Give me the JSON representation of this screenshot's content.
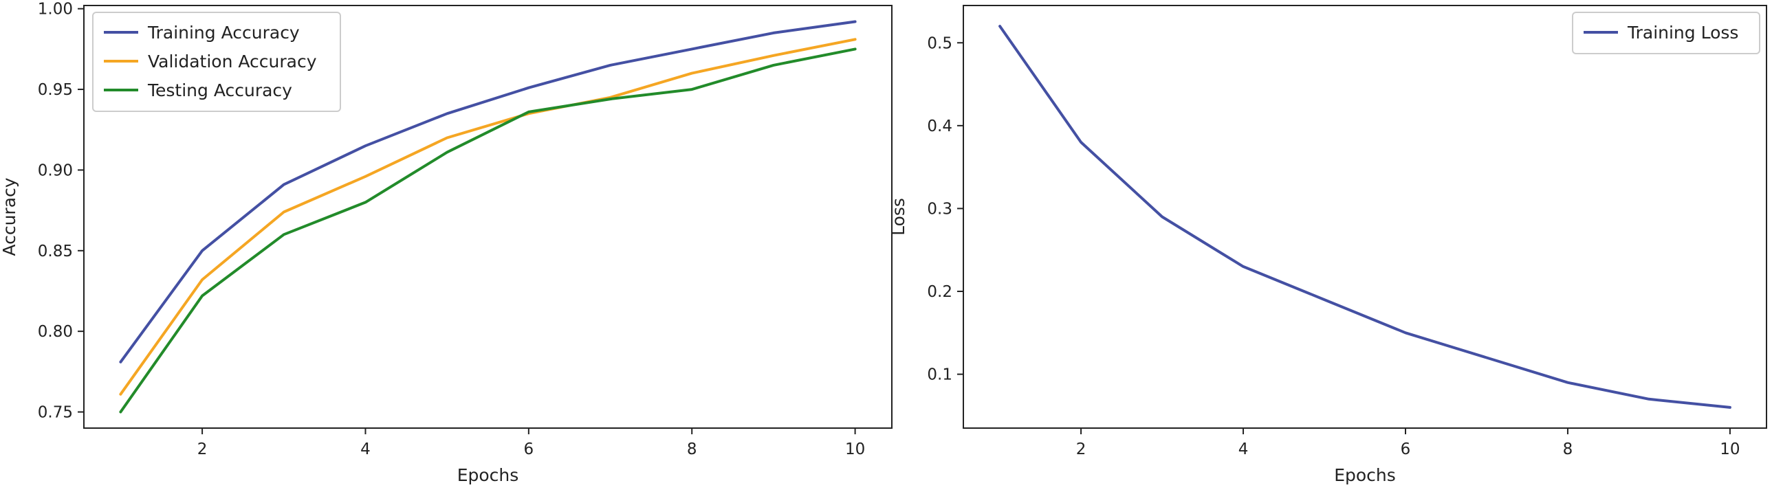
{
  "chart_data": [
    {
      "type": "line",
      "title": "",
      "xlabel": "Epochs",
      "ylabel": "Accuracy",
      "xlim": [
        0.55,
        10.45
      ],
      "ylim": [
        0.74,
        1.002
      ],
      "xticks": [
        2,
        4,
        6,
        8,
        10
      ],
      "yticks": [
        0.75,
        0.8,
        0.85,
        0.9,
        0.95,
        1.0
      ],
      "ytick_labels": [
        "0.75",
        "0.80",
        "0.85",
        "0.90",
        "0.95",
        "1.00"
      ],
      "grid": false,
      "legend": "top-left",
      "x": [
        1,
        2,
        3,
        4,
        5,
        6,
        7,
        8,
        9,
        10
      ],
      "series": [
        {
          "name": "Training Accuracy",
          "color": "#4450a3",
          "values": [
            0.781,
            0.85,
            0.891,
            0.915,
            0.935,
            0.951,
            0.965,
            0.975,
            0.985,
            0.992
          ]
        },
        {
          "name": "Validation Accuracy",
          "color": "#f5a623",
          "values": [
            0.761,
            0.832,
            0.874,
            0.896,
            0.92,
            0.935,
            0.945,
            0.96,
            0.971,
            0.981
          ]
        },
        {
          "name": "Testing Accuracy",
          "color": "#228b2a",
          "values": [
            0.75,
            0.822,
            0.86,
            0.88,
            0.911,
            0.936,
            0.944,
            0.95,
            0.965,
            0.975
          ]
        }
      ]
    },
    {
      "type": "line",
      "title": "",
      "xlabel": "Epochs",
      "ylabel": "Loss",
      "xlim": [
        0.55,
        10.45
      ],
      "ylim": [
        0.035,
        0.545
      ],
      "xticks": [
        2,
        4,
        6,
        8,
        10
      ],
      "yticks": [
        0.1,
        0.2,
        0.3,
        0.4,
        0.5
      ],
      "ytick_labels": [
        "0.1",
        "0.2",
        "0.3",
        "0.4",
        "0.5"
      ],
      "grid": false,
      "legend": "top-right",
      "x": [
        1,
        2,
        3,
        4,
        5,
        6,
        7,
        8,
        9,
        10
      ],
      "series": [
        {
          "name": "Training Loss",
          "color": "#4450a3",
          "values": [
            0.52,
            0.38,
            0.29,
            0.23,
            0.19,
            0.15,
            0.12,
            0.09,
            0.07,
            0.06
          ]
        }
      ]
    }
  ]
}
